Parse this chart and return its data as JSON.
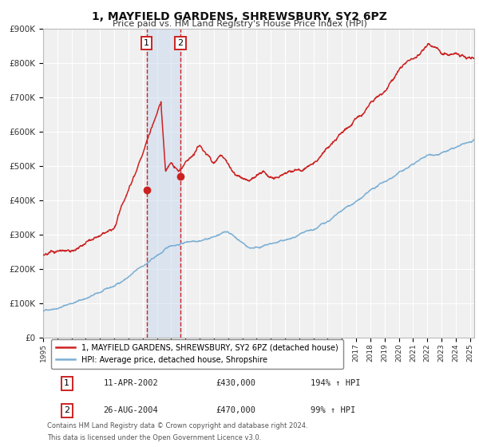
{
  "title": "1, MAYFIELD GARDENS, SHREWSBURY, SY2 6PZ",
  "subtitle": "Price paid vs. HM Land Registry's House Price Index (HPI)",
  "ylim": [
    0,
    900000
  ],
  "yticks": [
    0,
    100000,
    200000,
    300000,
    400000,
    500000,
    600000,
    700000,
    800000,
    900000
  ],
  "ytick_labels": [
    "£0",
    "£100K",
    "£200K",
    "£300K",
    "£400K",
    "£500K",
    "£600K",
    "£700K",
    "£800K",
    "£900K"
  ],
  "xlim_start": 1995.0,
  "xlim_end": 2025.3,
  "hpi_color": "#7bafd4",
  "price_color": "#cc2222",
  "marker_color": "#cc2222",
  "bg_color": "#f0f0f0",
  "grid_color": "#ffffff",
  "shade_color": "#c8d8ee",
  "transaction1_date": 2002.278,
  "transaction1_price": 430000,
  "transaction2_date": 2004.653,
  "transaction2_price": 470000,
  "legend_label_price": "1, MAYFIELD GARDENS, SHREWSBURY, SY2 6PZ (detached house)",
  "legend_label_hpi": "HPI: Average price, detached house, Shropshire",
  "table_rows": [
    {
      "num": "1",
      "date": "11-APR-2002",
      "price": "£430,000",
      "hpi": "194% ↑ HPI"
    },
    {
      "num": "2",
      "date": "26-AUG-2004",
      "price": "£470,000",
      "hpi": "99% ↑ HPI"
    }
  ],
  "footnote1": "Contains HM Land Registry data © Crown copyright and database right 2024.",
  "footnote2": "This data is licensed under the Open Government Licence v3.0."
}
